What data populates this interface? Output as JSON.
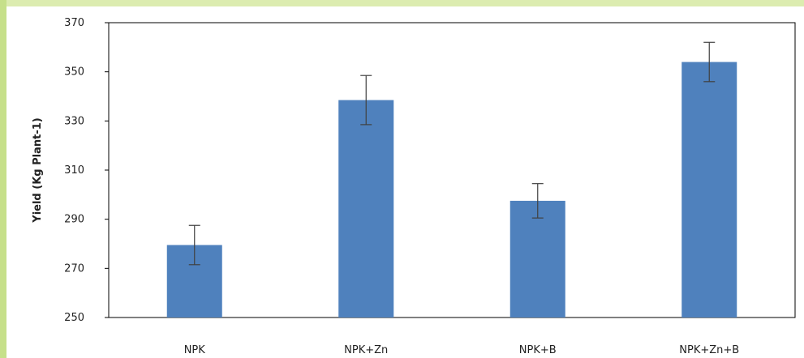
{
  "chart_data": {
    "type": "bar",
    "categories": [
      "NPK",
      "NPK+Zn",
      "NPK+B",
      "NPK+Zn+B"
    ],
    "values": [
      279.5,
      338.5,
      297.5,
      354
    ],
    "errors": [
      8,
      10,
      7,
      8
    ],
    "ylabel": "Yield (Kg Plant-1)",
    "xlabel": "",
    "ylim": [
      250,
      370
    ],
    "yticks": [
      250,
      270,
      290,
      310,
      330,
      350,
      370
    ],
    "grid": false,
    "legend": "none",
    "bar_color": "#4f81bd",
    "error_color": "#404040"
  }
}
